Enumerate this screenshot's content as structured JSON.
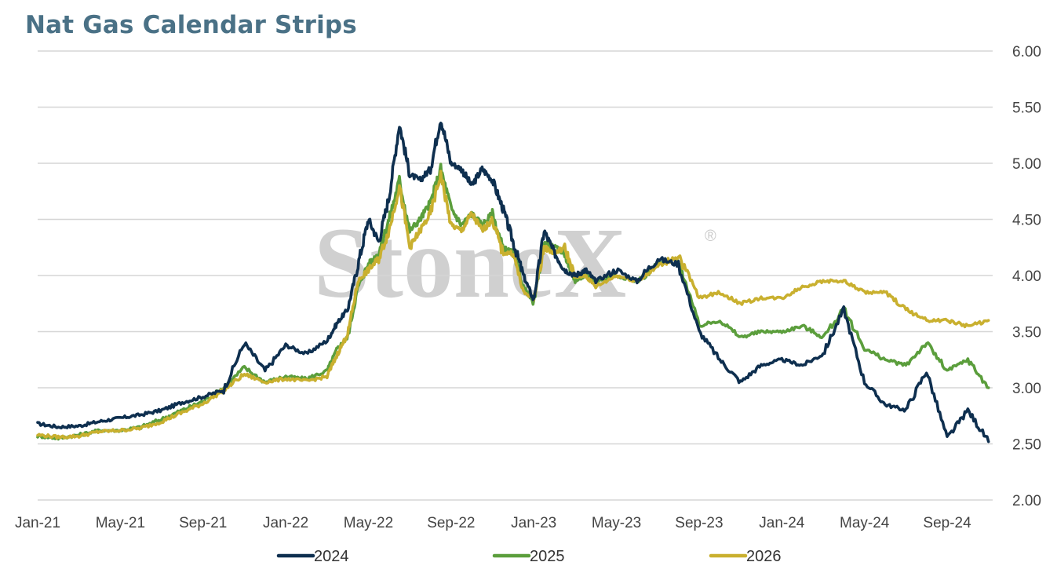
{
  "chart_data": {
    "type": "line",
    "title": "Nat Gas Calendar Strips",
    "watermark": "StoneX",
    "watermark_mark": "®",
    "xlabel": "",
    "ylabel": "",
    "x_tick_labels": [
      "Jan-21",
      "May-21",
      "Sep-21",
      "Jan-22",
      "May-22",
      "Sep-22",
      "Jan-23",
      "May-23",
      "Sep-23",
      "Jan-24",
      "May-24",
      "Sep-24"
    ],
    "y_tick_labels": [
      "2.00",
      "2.50",
      "3.00",
      "3.50",
      "4.00",
      "4.50",
      "5.00",
      "5.50",
      "6.00"
    ],
    "ylim": [
      2.0,
      6.0
    ],
    "y_axis_side": "right",
    "grid": "horizontal",
    "legend_position": "bottom",
    "x_unit": "months since Jan-21",
    "series": [
      {
        "name": "2024",
        "color": "#0e2f4f",
        "x": [
          0,
          1,
          2,
          3,
          4,
          5,
          6,
          7,
          8,
          9,
          10,
          11,
          12,
          13,
          14,
          14.5,
          15,
          15.5,
          16,
          16.5,
          17,
          17.5,
          18,
          18.5,
          19,
          19.5,
          20,
          20.5,
          21,
          21.5,
          22,
          22.5,
          23,
          23.5,
          24,
          24.5,
          25,
          25.5,
          26,
          26.5,
          27,
          28,
          29,
          30,
          31,
          32,
          33,
          34,
          35,
          36,
          37,
          38,
          39,
          40,
          41,
          42,
          43,
          44,
          45,
          46
        ],
        "y": [
          2.68,
          2.65,
          2.66,
          2.7,
          2.73,
          2.76,
          2.8,
          2.87,
          2.92,
          2.98,
          3.4,
          3.15,
          3.38,
          3.3,
          3.42,
          3.58,
          3.7,
          4.1,
          4.5,
          4.3,
          4.7,
          5.35,
          4.9,
          4.85,
          4.95,
          5.4,
          5.0,
          4.95,
          4.8,
          4.95,
          4.85,
          4.6,
          4.3,
          4.0,
          3.78,
          4.4,
          4.2,
          4.05,
          4.0,
          4.05,
          3.95,
          4.05,
          3.95,
          4.15,
          4.1,
          3.5,
          3.25,
          3.05,
          3.2,
          3.25,
          3.2,
          3.3,
          3.7,
          3.05,
          2.85,
          2.8,
          3.15,
          2.55,
          2.8,
          2.52
        ]
      },
      {
        "name": "2025",
        "color": "#5b9e3c",
        "x": [
          0,
          1,
          2,
          3,
          4,
          5,
          6,
          7,
          8,
          9,
          10,
          11,
          12,
          13,
          14,
          14.5,
          15,
          15.5,
          16,
          16.5,
          17,
          17.5,
          18,
          18.5,
          19,
          19.5,
          20,
          20.5,
          21,
          21.5,
          22,
          22.5,
          23,
          23.5,
          24,
          24.5,
          25,
          25.5,
          26,
          26.5,
          27,
          28,
          29,
          30,
          31,
          32,
          33,
          34,
          35,
          36,
          37,
          38,
          39,
          40,
          41,
          42,
          43,
          44,
          45,
          46
        ],
        "y": [
          2.57,
          2.55,
          2.58,
          2.62,
          2.62,
          2.65,
          2.72,
          2.8,
          2.88,
          3.0,
          3.18,
          3.05,
          3.1,
          3.08,
          3.15,
          3.35,
          3.45,
          3.9,
          4.1,
          4.2,
          4.5,
          4.85,
          4.4,
          4.5,
          4.65,
          4.95,
          4.6,
          4.45,
          4.55,
          4.45,
          4.55,
          4.25,
          4.2,
          3.9,
          3.75,
          4.3,
          4.25,
          4.2,
          3.95,
          4.0,
          3.95,
          4.0,
          3.95,
          4.1,
          4.15,
          3.55,
          3.6,
          3.45,
          3.5,
          3.5,
          3.55,
          3.45,
          3.7,
          3.35,
          3.25,
          3.2,
          3.4,
          3.15,
          3.25,
          3.0
        ]
      },
      {
        "name": "2026",
        "color": "#c9b02f",
        "x": [
          0,
          1,
          2,
          3,
          4,
          5,
          6,
          7,
          8,
          9,
          10,
          11,
          12,
          13,
          14,
          14.5,
          15,
          15.5,
          16,
          16.5,
          17,
          17.5,
          18,
          18.5,
          19,
          19.5,
          20,
          20.5,
          21,
          21.5,
          22,
          22.5,
          23,
          23.5,
          24,
          24.5,
          25,
          25.5,
          26,
          26.5,
          27,
          28,
          29,
          30,
          31,
          32,
          33,
          34,
          35,
          36,
          37,
          38,
          39,
          40,
          41,
          42,
          43,
          44,
          45,
          46
        ],
        "y": [
          2.58,
          2.56,
          2.57,
          2.61,
          2.62,
          2.64,
          2.7,
          2.78,
          2.86,
          2.98,
          3.12,
          3.05,
          3.08,
          3.06,
          3.1,
          3.3,
          3.48,
          3.95,
          4.05,
          4.15,
          4.4,
          4.8,
          4.25,
          4.4,
          4.55,
          4.9,
          4.45,
          4.4,
          4.55,
          4.4,
          4.5,
          4.2,
          4.2,
          3.85,
          3.8,
          4.25,
          4.2,
          4.25,
          3.98,
          4.0,
          3.9,
          4.0,
          3.95,
          4.08,
          4.18,
          3.8,
          3.85,
          3.75,
          3.8,
          3.8,
          3.9,
          3.95,
          3.95,
          3.85,
          3.85,
          3.7,
          3.6,
          3.6,
          3.55,
          3.6
        ]
      }
    ]
  }
}
